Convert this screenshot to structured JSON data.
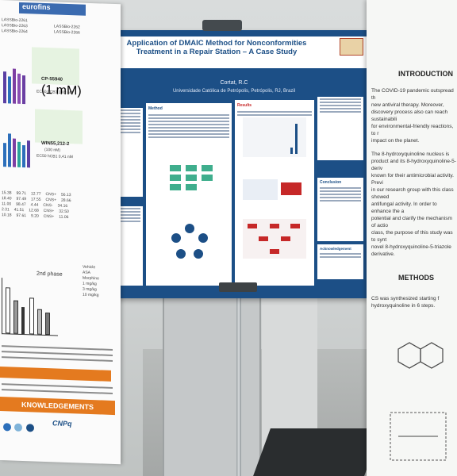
{
  "main_poster": {
    "title": "Application of DMAIC Method for Nonconformities Treatment in a Repair Station – A Case Study",
    "author": "Cortat, R.C",
    "affiliation": "Universidade Católica de Petrópolis, Petrópolis, RJ, Brazil",
    "sections": {
      "method": "Method",
      "results": "Results",
      "conclusion": "Conclusion",
      "acknowledgement": "Acknowledgement"
    }
  },
  "right_poster": {
    "heading_intro": "INTRODUCTION",
    "heading_methods": "METHODS",
    "intro_lines": [
      "The COVID-19 pandemic outspread th",
      "new antiviral therapy. Moreover,",
      "discovery process also can reach sustainabili",
      "for environmental-friendly reactions, to r",
      "impact on the planet.",
      "The 8-hydroxyquinoline nucleus is",
      "product and its 8-hydroxyquinoline-5-deriv",
      "known for their antimicrobial activity. Previ",
      "in our research group with this class showed",
      "antifungal activity. In order to enhance the a",
      "potential and clarify the mechanism of actio",
      "class, the purpose of this study was to synt",
      "novel 8-hydroxyquinoline-5-triazole derivative."
    ],
    "methods_lines": [
      "CS was synthesized starting f",
      "hydroxyquinoline in 6 steps."
    ]
  },
  "left_poster": {
    "brand": "eurofins",
    "legend": [
      "LASSBio-2261",
      "LASSBio-2263",
      "LASSBio-2264",
      "LASSBio-2262",
      "LASSBio-2266"
    ],
    "compound1": "CP-55940",
    "compound1_dose": "(1 mM)",
    "compound1_ec": "EC50 hCB1 1,83 nM",
    "compound2": "WIN55,212-2",
    "compound2_dose": "(100 nM)",
    "compound2_ec": "EC50 hCB1 0,41 nM",
    "phase_label": "2nd phase",
    "series": [
      "Vehicle",
      "ASA",
      "Morphine",
      "1 mg/kg",
      "3 mg/kg",
      "10 mg/kg"
    ],
    "table_rows": [
      [
        "15.38",
        "99.71",
        "12.77",
        "CNS+",
        "56.13"
      ],
      [
        "18.40",
        "97.49",
        "17.55",
        "CNS+",
        "28.66"
      ],
      [
        "11.00",
        "98.47",
        "4.44",
        "CNS-",
        "34.16"
      ],
      [
        "2.31",
        "41.51",
        "12.68",
        "CNS+",
        "32.50"
      ],
      [
        "10.18",
        "97.61",
        "9.20",
        "CNS+",
        "11.06"
      ]
    ],
    "ack": "KNOWLEDGEMENTS",
    "sponsor": "CNPq"
  },
  "colors": {
    "poster_blue": "#1c4f86",
    "accent_orange": "#e47a1f",
    "figure_green": "#3fae8d",
    "figure_red": "#c62828"
  }
}
